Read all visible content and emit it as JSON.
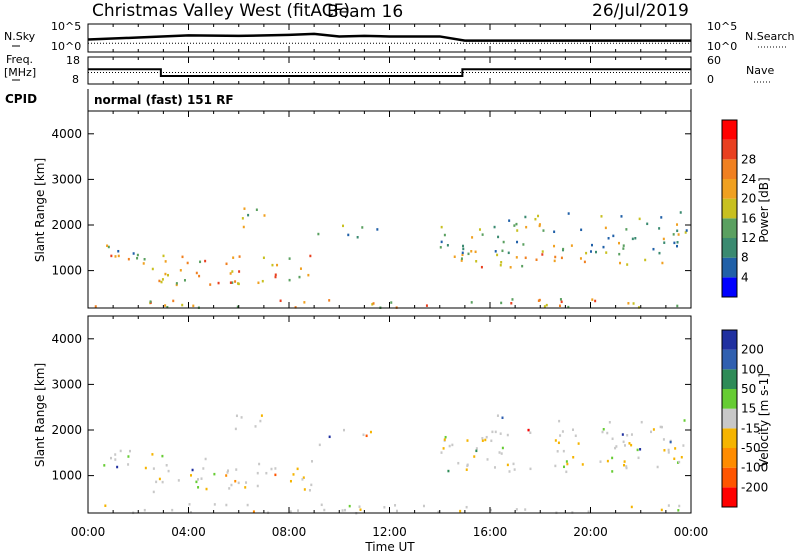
{
  "header": {
    "title": "Christmas Valley West (fitACF)",
    "beam": "Beam 16",
    "date": "26/Jul/2019"
  },
  "side_labels": {
    "nsky": "N.Sky",
    "nsearch": "N.Search",
    "freq": "Freq.",
    "freq_unit": "[MHz]",
    "nave": "Nave",
    "cpid": "CPID"
  },
  "cpid_text": "normal (fast) 151 RF",
  "xlabel": "Time UT",
  "colors": {
    "power_scale": [
      "#0000ff",
      "#2060a8",
      "#3a8a70",
      "#5aa060",
      "#c8c020",
      "#f0a020",
      "#f08020",
      "#e84020",
      "#ff0000"
    ],
    "velocity_scale": [
      "#2030a0",
      "#3060b0",
      "#2e8b57",
      "#66cc33",
      "#c8c8c8",
      "#f5b400",
      "#ff8c00",
      "#ff5500",
      "#ff0000"
    ]
  },
  "chart_data": [
    {
      "type": "line",
      "name": "noise",
      "x_ticks": [
        "00:00",
        "04:00",
        "08:00",
        "12:00",
        "16:00",
        "20:00",
        "00:00"
      ],
      "xlim": [
        0,
        24
      ],
      "left_ticks": [
        "10^5",
        "10^0"
      ],
      "right_ticks": [
        "10^5",
        "10^0"
      ],
      "series": [
        {
          "name": "N.Sky",
          "x": [
            0,
            2,
            4,
            6,
            8,
            9,
            10,
            11,
            12,
            14,
            15,
            17,
            19,
            21,
            23,
            24
          ],
          "y": [
            2.2,
            2.6,
            3.0,
            2.9,
            3.1,
            3.3,
            2.8,
            2.9,
            2.8,
            2.8,
            2.0,
            2.0,
            2.0,
            2.0,
            2.0,
            2.0
          ]
        },
        {
          "name": "N.Search",
          "x": [
            0,
            24
          ],
          "y": [
            1.5,
            1.5
          ]
        }
      ]
    },
    {
      "type": "line",
      "name": "frequency-nave",
      "left_ticks": [
        "18",
        "8"
      ],
      "right_ticks": [
        "60",
        "0"
      ],
      "series": [
        {
          "name": "Freq.",
          "x": [
            0,
            2.9,
            2.9,
            14.9,
            14.9,
            24
          ],
          "y": [
            13.5,
            13.5,
            10.8,
            10.8,
            13.5,
            13.5
          ]
        },
        {
          "name": "Nave",
          "x": [
            0,
            24
          ],
          "y": [
            12.2,
            12.2
          ]
        }
      ]
    },
    {
      "type": "heatmap",
      "name": "power",
      "ylabel": "Slant Range [km]",
      "ylim": [
        180,
        4500
      ],
      "y_ticks": [
        1000,
        2000,
        3000,
        4000
      ],
      "colorbar_label": "Power [dB]",
      "colorbar_ticks": [
        4,
        8,
        12,
        16,
        20,
        24,
        28
      ]
    },
    {
      "type": "heatmap",
      "name": "velocity",
      "ylabel": "Slant Range [km]",
      "ylim": [
        180,
        4500
      ],
      "y_ticks": [
        1000,
        2000,
        3000,
        4000
      ],
      "colorbar_label": "Velocity [m s-1]",
      "colorbar_ticks": [
        200,
        100,
        50,
        15,
        -15,
        -50,
        -100,
        -200
      ]
    }
  ]
}
